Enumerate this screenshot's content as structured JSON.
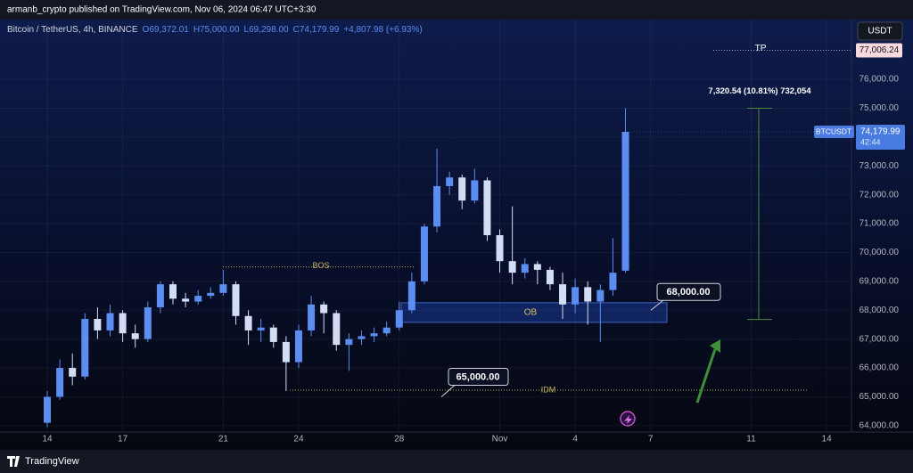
{
  "header": {
    "publisher": "armanb_crypto published on TradingView.com, Nov 06, 2024 06:47 UTC+3:30"
  },
  "chart_data": {
    "type": "candlestick",
    "legend": {
      "symbol": "Bitcoin / TetherUS, 4h, BINANCE",
      "open": "O69,372.01",
      "high": "H75,000.00",
      "low": "L69,298.00",
      "close": "C74,179.99",
      "change": "+4,807.98 (+6.93%)"
    },
    "currency": "USDT",
    "up_color": "#5c8df0",
    "down_color": "#d3def5",
    "grid": true,
    "xlim": [
      -1.88,
      31.99
    ],
    "xticks": [
      {
        "value": 0,
        "label": "14"
      },
      {
        "value": 3,
        "label": "17"
      },
      {
        "value": 7,
        "label": "21"
      },
      {
        "value": 10,
        "label": "24"
      },
      {
        "value": 14,
        "label": "28"
      },
      {
        "value": 18,
        "label": "Nov"
      },
      {
        "value": 21,
        "label": "4"
      },
      {
        "value": 24,
        "label": "7"
      },
      {
        "value": 28,
        "label": "11"
      },
      {
        "value": 31,
        "label": "14"
      }
    ],
    "ylim": [
      63780,
      78070
    ],
    "yticks": [
      {
        "value": 64000,
        "label": "64,000.00"
      },
      {
        "value": 65000,
        "label": "65,000.00"
      },
      {
        "value": 66000,
        "label": "66,000.00"
      },
      {
        "value": 67000,
        "label": "67,000.00"
      },
      {
        "value": 68000,
        "label": "68,000.00"
      },
      {
        "value": 69000,
        "label": "69,000.00"
      },
      {
        "value": 70000,
        "label": "70,000.00"
      },
      {
        "value": 71000,
        "label": "71,000.00"
      },
      {
        "value": 72000,
        "label": "72,000.00"
      },
      {
        "value": 73000,
        "label": "73,000.00"
      },
      {
        "value": 74000,
        "label": "74,000.00"
      },
      {
        "value": 75000,
        "label": "75,000.00"
      },
      {
        "value": 76000,
        "label": "76,000.00"
      }
    ],
    "candles": {
      "x": [
        0,
        0.5,
        1,
        1.5,
        2,
        2.5,
        3,
        3.5,
        4,
        4.5,
        5,
        5.5,
        6,
        6.5,
        7,
        7.5,
        8,
        8.5,
        9,
        9.5,
        10,
        10.5,
        11,
        11.5,
        12,
        12.5,
        13,
        13.5,
        14,
        14.5,
        15,
        15.5,
        16,
        16.5,
        17,
        17.5,
        18,
        18.5,
        19,
        19.5,
        20,
        20.5,
        21,
        21.5,
        22,
        22.5,
        23
      ],
      "open": [
        64100,
        65000,
        66000,
        65700,
        67700,
        67300,
        67900,
        67200,
        67000,
        68100,
        68900,
        68400,
        68300,
        68500,
        68600,
        68900,
        67800,
        67300,
        67400,
        66900,
        66200,
        67300,
        68200,
        67900,
        66800,
        67000,
        67100,
        67200,
        67400,
        68000,
        69000,
        70900,
        72300,
        72600,
        71800,
        72500,
        70600,
        69700,
        69300,
        69600,
        69400,
        68900,
        68200,
        68800,
        68300,
        68700,
        69372.01
      ],
      "high": [
        65200,
        66300,
        66500,
        67900,
        68100,
        68200,
        68000,
        67500,
        68300,
        69000,
        69000,
        68600,
        68700,
        68800,
        69400,
        69000,
        68000,
        67700,
        67500,
        67100,
        67500,
        68500,
        68300,
        68000,
        67200,
        67300,
        67400,
        67600,
        68300,
        69300,
        71000,
        73600,
        72800,
        72700,
        72900,
        72600,
        70800,
        71600,
        69800,
        69700,
        69500,
        69300,
        69100,
        69000,
        68900,
        70500,
        75000
      ],
      "low": [
        63950,
        64900,
        65400,
        65600,
        67000,
        67100,
        66900,
        66700,
        66900,
        67900,
        68200,
        68100,
        68200,
        68400,
        68500,
        67500,
        66800,
        66900,
        66700,
        65200,
        66000,
        67100,
        67200,
        66600,
        65900,
        66800,
        66900,
        67100,
        67300,
        67900,
        68900,
        70700,
        72000,
        71500,
        71700,
        70400,
        69300,
        68900,
        69100,
        68900,
        68700,
        67700,
        67900,
        67500,
        66900,
        68500,
        69298
      ],
      "close": [
        65000,
        66000,
        65700,
        67700,
        67300,
        67900,
        67200,
        67000,
        68100,
        68900,
        68400,
        68300,
        68500,
        68600,
        68900,
        67800,
        67300,
        67400,
        66900,
        66200,
        67300,
        68200,
        67900,
        66800,
        67000,
        67100,
        67200,
        67400,
        68000,
        69000,
        70900,
        72300,
        72600,
        71800,
        72500,
        70600,
        69700,
        69300,
        69600,
        69400,
        68900,
        68200,
        68800,
        68300,
        68700,
        69300,
        74179.99
      ]
    },
    "last_price": {
      "symbol": "BTCUSDT",
      "price": {
        "value": 74179.99,
        "label": "74,179.99"
      },
      "countdown": "42:44"
    },
    "annotations": {
      "tp": {
        "text": "TP",
        "price": {
          "value": 77006.24,
          "label": "77,006.24"
        }
      },
      "bos": {
        "text": "BOS",
        "price": 69500
      },
      "idm": {
        "text": "IDM",
        "price": 65230
      },
      "ob": {
        "text": "OB",
        "low": 67580,
        "high": 68260
      },
      "callout_high": {
        "value": 68000,
        "label": "68,000.00"
      },
      "callout_low": {
        "value": 65000,
        "label": "65,000.00"
      },
      "measure": {
        "label": "7,320.54 (10.81%) 732,054",
        "from": 67679.46,
        "to": 75000
      }
    }
  },
  "footer": {
    "brand": "TradingView"
  }
}
